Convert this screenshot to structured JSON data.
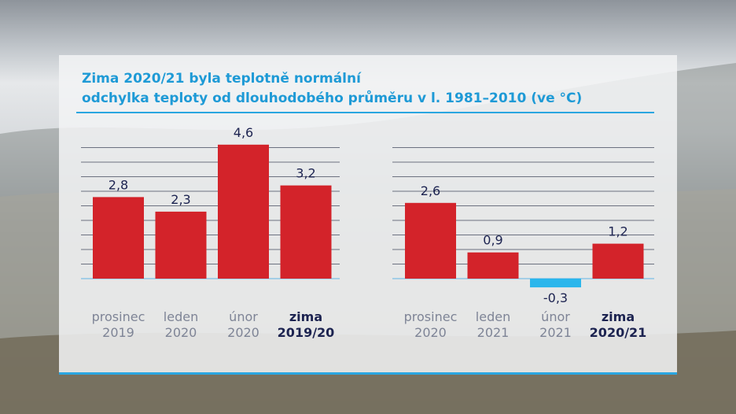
{
  "colors": {
    "positive": "#d3232a",
    "negative": "#2bb6ec",
    "title": "#1e9ad6",
    "value_text": "#1c2350",
    "category_text": "#7e8496"
  },
  "chart_data": {
    "type": "bar",
    "title": "Zima 2020/21 byla teplotně normální",
    "subtitle": "odchylka teploty od dlouhodobého průměru v l. 1981–2010 (ve °C)",
    "xlabel": "",
    "ylabel": "",
    "ylim": [
      -0.6,
      5.0
    ],
    "grid": true,
    "groups": [
      {
        "bars": [
          {
            "line1": "prosinec",
            "line2": "2019",
            "value": 2.8,
            "label": "2,8",
            "bold": false
          },
          {
            "line1": "leden",
            "line2": "2020",
            "value": 2.3,
            "label": "2,3",
            "bold": false
          },
          {
            "line1": "únor",
            "line2": "2020",
            "value": 4.6,
            "label": "4,6",
            "bold": false
          },
          {
            "line1": "zima",
            "line2": "2019/20",
            "value": 3.2,
            "label": "3,2",
            "bold": true
          }
        ]
      },
      {
        "bars": [
          {
            "line1": "prosinec",
            "line2": "2020",
            "value": 2.6,
            "label": "2,6",
            "bold": false
          },
          {
            "line1": "leden",
            "line2": "2021",
            "value": 0.9,
            "label": "0,9",
            "bold": false
          },
          {
            "line1": "únor",
            "line2": "2021",
            "value": -0.3,
            "label": "-0,3",
            "bold": false
          },
          {
            "line1": "zima",
            "line2": "2020/21",
            "value": 1.2,
            "label": "1,2",
            "bold": true
          }
        ]
      }
    ]
  }
}
